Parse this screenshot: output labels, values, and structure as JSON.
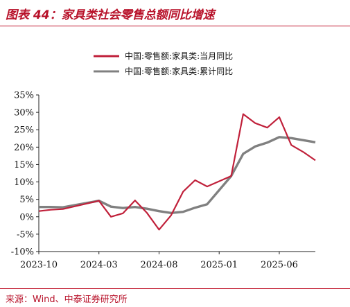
{
  "header": {
    "title": "图表 44：家具类社会零售总额同比增速"
  },
  "footer": {
    "source": "来源：Wind、中泰证券研究所"
  },
  "chart_data": {
    "type": "line",
    "title": "",
    "xlabel": "",
    "ylabel": "",
    "ylim": [
      -10,
      35
    ],
    "y_ticks": [
      35,
      30,
      25,
      20,
      15,
      10,
      5,
      0,
      -5,
      -10
    ],
    "y_tick_format": "percent",
    "x_tick_labels": [
      "2023-10",
      "2024-03",
      "2024-08",
      "2025-01",
      "2025-06"
    ],
    "x": [
      "2023-10",
      "2023-11",
      "2023-12",
      "2024-01",
      "2024-02",
      "2024-03",
      "2024-04",
      "2024-05",
      "2024-06",
      "2024-07",
      "2024-08",
      "2024-09",
      "2024-10",
      "2024-11",
      "2024-12",
      "2025-01",
      "2025-02",
      "2025-03",
      "2025-04",
      "2025-05",
      "2025-06",
      "2025-07",
      "2025-08",
      "2025-09"
    ],
    "grid": false,
    "legend_position": "top",
    "series": [
      {
        "name": "中国:零售额:家具类:当月同比",
        "color": "#c0203a",
        "values": [
          1.6,
          2.0,
          2.2,
          null,
          null,
          4.6,
          0.0,
          1.0,
          4.7,
          1.1,
          -3.7,
          0.4,
          7.2,
          10.5,
          8.7,
          null,
          11.7,
          29.5,
          26.9,
          25.6,
          28.6,
          20.6,
          18.6,
          16.2
        ]
      },
      {
        "name": "中国:零售额:家具类:累计同比",
        "color": "#808080",
        "values": [
          2.8,
          2.8,
          2.7,
          null,
          null,
          4.6,
          2.9,
          2.5,
          2.8,
          2.3,
          1.6,
          1.1,
          1.4,
          2.6,
          3.6,
          null,
          11.7,
          18.1,
          20.2,
          21.3,
          22.9,
          22.6,
          22.0,
          21.4
        ]
      }
    ]
  }
}
